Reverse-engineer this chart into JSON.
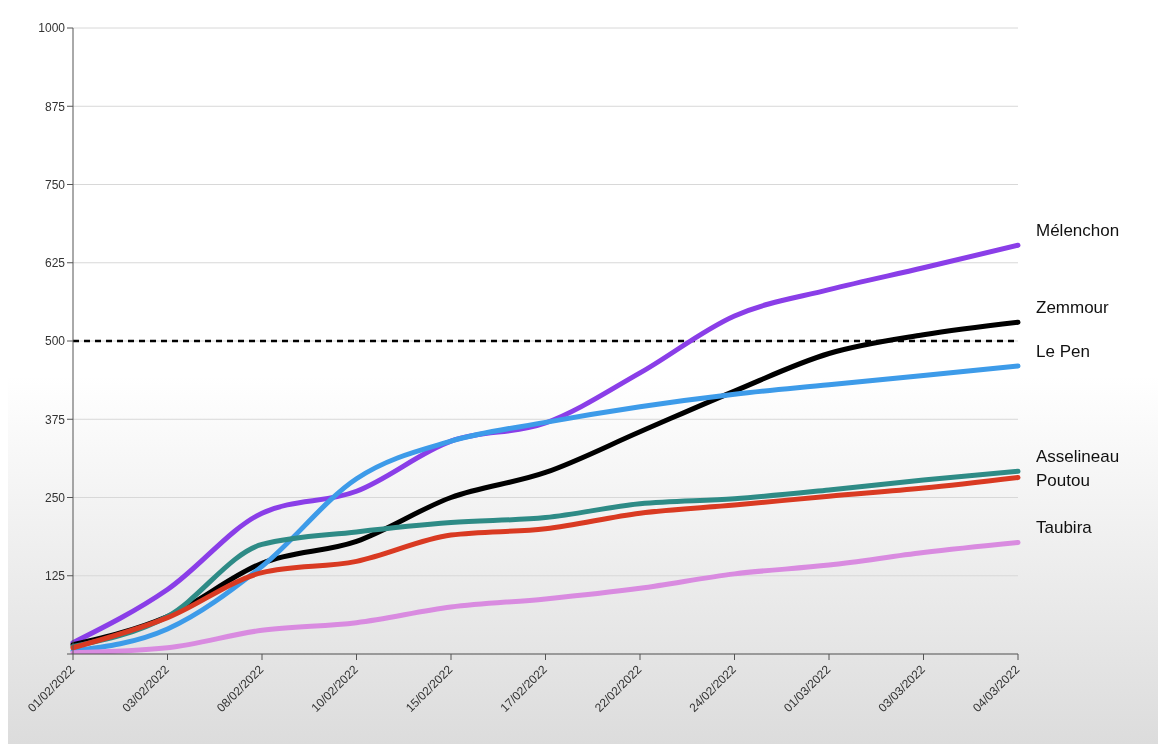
{
  "chart_data": {
    "type": "line",
    "categories": [
      "01/02/2022",
      "03/02/2022",
      "08/02/2022",
      "10/02/2022",
      "15/02/2022",
      "17/02/2022",
      "22/02/2022",
      "24/02/2022",
      "01/03/2022",
      "03/03/2022",
      "04/03/2022"
    ],
    "series": [
      {
        "name": "Mélenchon",
        "color": "#8a3ee8",
        "values": [
          18,
          103,
          225,
          260,
          340,
          369,
          449,
          540,
          582,
          617,
          653
        ]
      },
      {
        "name": "Zemmour",
        "color": "#000000",
        "values": [
          15,
          60,
          145,
          180,
          250,
          290,
          355,
          420,
          480,
          510,
          530
        ]
      },
      {
        "name": "Le Pen",
        "color": "#3d9be9",
        "values": [
          5,
          40,
          140,
          280,
          340,
          370,
          395,
          415,
          430,
          445,
          460
        ]
      },
      {
        "name": "Asselineau",
        "color": "#2e8b86",
        "values": [
          12,
          60,
          175,
          195,
          210,
          218,
          240,
          248,
          262,
          278,
          292
        ]
      },
      {
        "name": "Poutou",
        "color": "#d93a22",
        "values": [
          10,
          58,
          130,
          148,
          190,
          200,
          225,
          238,
          252,
          265,
          282
        ]
      },
      {
        "name": "Taubira",
        "color": "#d98be0",
        "values": [
          2,
          10,
          38,
          50,
          75,
          88,
          105,
          128,
          142,
          162,
          178
        ]
      }
    ],
    "ylim": [
      0,
      1000
    ],
    "yticks": [
      {
        "value": 0,
        "label": null
      },
      125,
      250,
      375,
      500,
      625,
      750,
      875,
      1000
    ],
    "ref_lines": [
      {
        "axis": "y",
        "value": 500,
        "color": "#000000",
        "line_style": "dashed"
      }
    ],
    "grid": "y",
    "legend": false,
    "marker": "none",
    "line_style": "solid"
  }
}
